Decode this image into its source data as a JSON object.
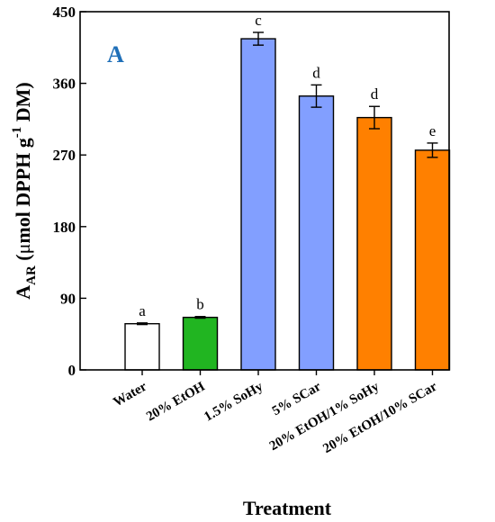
{
  "chart_data": {
    "type": "bar",
    "panel_label": "A",
    "xlabel": "Treatment",
    "ylabel": {
      "main": "A",
      "sub": "AR",
      "unit_prefix": " (",
      "mu": "μ",
      "unit_mid": "mol DPPH g",
      "sup": "-1",
      "unit_end": " DM)"
    },
    "ylim": [
      0,
      450
    ],
    "yticks": [
      "0",
      "90",
      "180",
      "270",
      "360",
      "450"
    ],
    "categories": [
      "Water",
      "20% EtOH",
      "1.5% SoHy",
      "5% SCar",
      "20% EtOH/1% SoHy",
      "20% EtOH/10% SCar"
    ],
    "values": [
      58,
      66,
      416,
      344,
      317,
      276
    ],
    "errors": [
      1,
      1,
      8,
      14,
      14,
      9
    ],
    "letters": [
      "a",
      "b",
      "c",
      "d",
      "d",
      "e"
    ],
    "colors": [
      "#ffffff",
      "#21b521",
      "#829fff",
      "#829fff",
      "#ff8000",
      "#ff8000"
    ],
    "grid": false
  }
}
